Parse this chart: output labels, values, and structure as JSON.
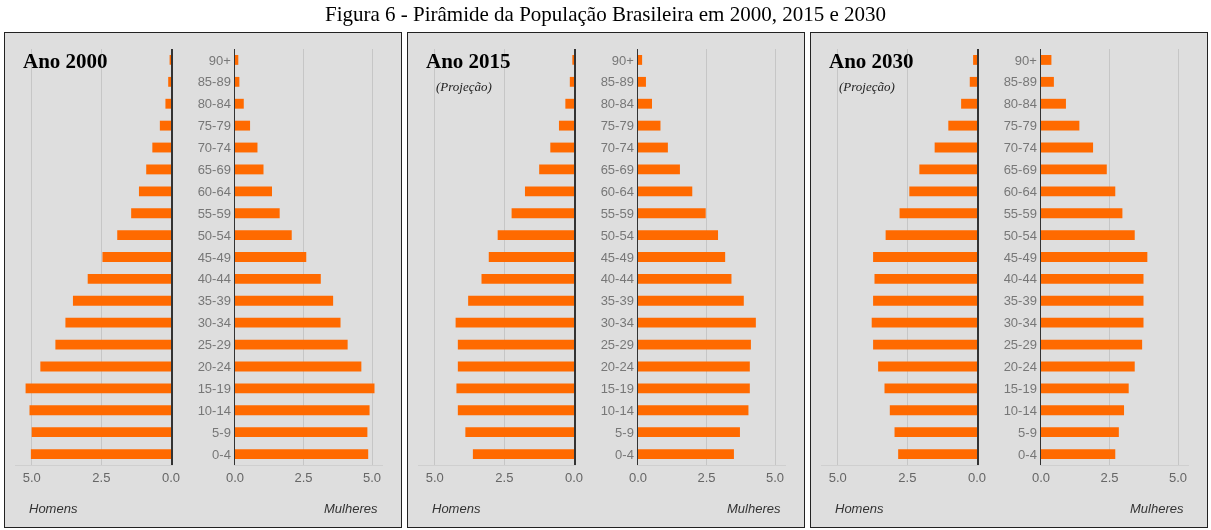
{
  "chart_data": [
    {
      "type": "bar",
      "subtitle": "Ano 2000",
      "xlabel": "Homens",
      "orientation": "horizontal",
      "tick_labels": "x",
      "grid": "x",
      "categories": [
        null,
        null,
        null,
        null,
        null,
        null,
        null,
        null,
        null,
        null,
        null,
        null,
        null,
        null,
        null,
        null,
        null,
        null,
        null
      ],
      "series": [
        {
          "color": "#ff6a00",
          "values": [
            0.05,
            0.1,
            0.2,
            0.4,
            0.67,
            0.89,
            1.15,
            1.43,
            1.93,
            2.46,
            2.99,
            3.52,
            3.79,
            4.15,
            4.69,
            5.22,
            5.08,
            5.0,
            5.03
          ]
        }
      ],
      "xlim": [
        5.6,
        0
      ],
      "xticks": [
        {
          "value": 5,
          "label": "5.0"
        },
        {
          "value": 2.5,
          "label": "2.5"
        },
        {
          "value": 0,
          "label": "0.0"
        }
      ]
    },
    {
      "type": "bar",
      "xlabel": "Mulheres",
      "orientation": "horizontal",
      "grid": "x",
      "categories": [
        "90+",
        "85-89",
        "80-84",
        "75-79",
        "70-74",
        "65-69",
        "60-64",
        "55-59",
        "50-54",
        "45-49",
        "40-44",
        "35-39",
        "30-34",
        "25-29",
        "20-24",
        "15-19",
        "10-14",
        "5-9",
        "0-4"
      ],
      "series": [
        {
          "color": "#ff6a00",
          "values": [
            0.12,
            0.16,
            0.32,
            0.55,
            0.82,
            1.04,
            1.35,
            1.63,
            2.07,
            2.6,
            3.13,
            3.58,
            3.85,
            4.11,
            4.61,
            5.09,
            4.91,
            4.83,
            4.86
          ]
        }
      ],
      "xlim": [
        0,
        5.4
      ],
      "xticks": [
        {
          "value": 0,
          "label": "0.0"
        },
        {
          "value": 2.5,
          "label": "2.5"
        },
        {
          "value": 5,
          "label": "5.0"
        }
      ]
    },
    {
      "type": "bar",
      "subtitle": "Ano 2015",
      "annotations": [
        "(Projeção)"
      ],
      "xlabel": "Homens",
      "orientation": "horizontal",
      "tick_labels": "x",
      "grid": "x",
      "categories": [
        null,
        null,
        null,
        null,
        null,
        null,
        null,
        null,
        null,
        null,
        null,
        null,
        null,
        null,
        null,
        null,
        null,
        null,
        null
      ],
      "series": [
        {
          "color": "#ff6a00",
          "values": [
            0.06,
            0.15,
            0.31,
            0.54,
            0.85,
            1.25,
            1.76,
            2.24,
            2.74,
            3.06,
            3.32,
            3.8,
            4.25,
            4.17,
            4.17,
            4.22,
            4.17,
            3.9,
            3.63
          ]
        }
      ],
      "xlim": [
        5.6,
        0
      ],
      "xticks": [
        {
          "value": 5,
          "label": "5.0"
        },
        {
          "value": 2.5,
          "label": "2.5"
        },
        {
          "value": 0,
          "label": "0.0"
        }
      ]
    },
    {
      "type": "bar",
      "title": "Figura 6 - Pirâmide da População Brasileira em 2000, 2015 e 2030",
      "xlabel": "Mulheres",
      "orientation": "horizontal",
      "grid": "x",
      "categories": [
        "90+",
        "85-89",
        "80-84",
        "75-79",
        "70-74",
        "65-69",
        "60-64",
        "55-59",
        "50-54",
        "45-49",
        "40-44",
        "35-39",
        "30-34",
        "25-29",
        "20-24",
        "15-19",
        "10-14",
        "5-9",
        "0-4"
      ],
      "series": [
        {
          "color": "#ff6a00",
          "values": [
            0.15,
            0.29,
            0.51,
            0.82,
            1.09,
            1.53,
            1.98,
            2.47,
            2.92,
            3.18,
            3.41,
            3.86,
            4.3,
            4.12,
            4.08,
            4.08,
            4.03,
            3.72,
            3.5
          ]
        }
      ],
      "xlim": [
        0,
        5.4
      ],
      "xticks": [
        {
          "value": 0,
          "label": "0.0"
        },
        {
          "value": 2.5,
          "label": "2.5"
        },
        {
          "value": 5,
          "label": "5.0"
        }
      ]
    },
    {
      "type": "bar",
      "subtitle": "Ano 2030",
      "annotations": [
        "(Projeção)"
      ],
      "xlabel": "Homens",
      "orientation": "horizontal",
      "tick_labels": "x",
      "grid": "x",
      "categories": [
        null,
        null,
        null,
        null,
        null,
        null,
        null,
        null,
        null,
        null,
        null,
        null,
        null,
        null,
        null,
        null,
        null,
        null,
        null
      ],
      "series": [
        {
          "color": "#ff6a00",
          "values": [
            0.14,
            0.26,
            0.57,
            1.03,
            1.52,
            2.07,
            2.43,
            2.78,
            3.28,
            3.73,
            3.68,
            3.73,
            3.78,
            3.73,
            3.55,
            3.32,
            3.13,
            2.96,
            2.83
          ]
        }
      ],
      "xlim": [
        5.6,
        0
      ],
      "xticks": [
        {
          "value": 5,
          "label": "5.0"
        },
        {
          "value": 2.5,
          "label": "2.5"
        },
        {
          "value": 0,
          "label": "0.0"
        }
      ]
    },
    {
      "type": "bar",
      "xlabel": "Mulheres",
      "orientation": "horizontal",
      "grid": "x",
      "categories": [
        "90+",
        "85-89",
        "80-84",
        "75-79",
        "70-74",
        "65-69",
        "60-64",
        "55-59",
        "50-54",
        "45-49",
        "40-44",
        "35-39",
        "30-34",
        "25-29",
        "20-24",
        "15-19",
        "10-14",
        "5-9",
        "0-4"
      ],
      "series": [
        {
          "color": "#ff6a00",
          "values": [
            0.38,
            0.47,
            0.91,
            1.4,
            1.9,
            2.4,
            2.71,
            2.97,
            3.42,
            3.88,
            3.74,
            3.74,
            3.74,
            3.69,
            3.42,
            3.2,
            3.03,
            2.84,
            2.71
          ]
        }
      ],
      "xlim": [
        0,
        5.4
      ],
      "xticks": [
        {
          "value": 0,
          "label": "0.0"
        },
        {
          "value": 2.5,
          "label": "2.5"
        },
        {
          "value": 5,
          "label": "5.0"
        }
      ]
    }
  ]
}
